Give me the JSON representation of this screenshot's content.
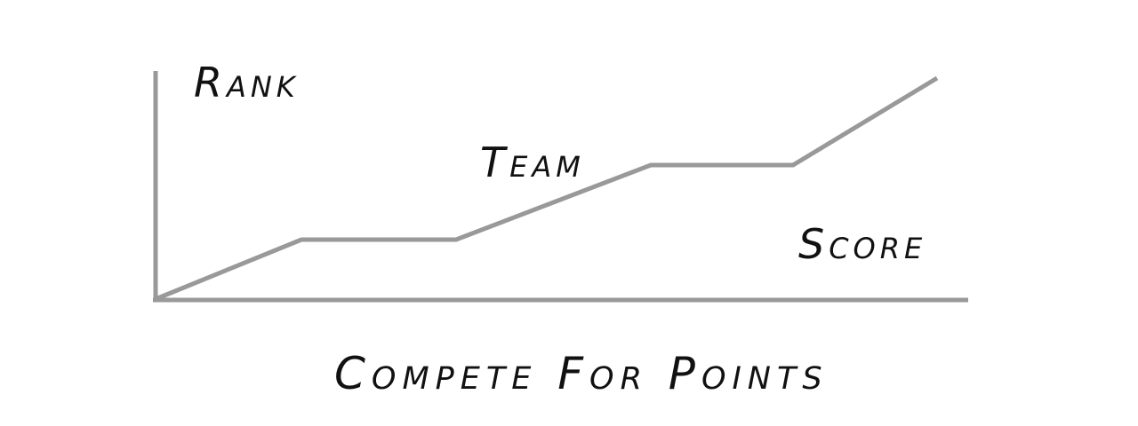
{
  "labels": {
    "rank": "Rank",
    "team": "Team",
    "score": "Score",
    "caption": "Compete For Points"
  },
  "colors": {
    "line": "#999999",
    "text": "#111111",
    "background": "#ffffff"
  }
}
